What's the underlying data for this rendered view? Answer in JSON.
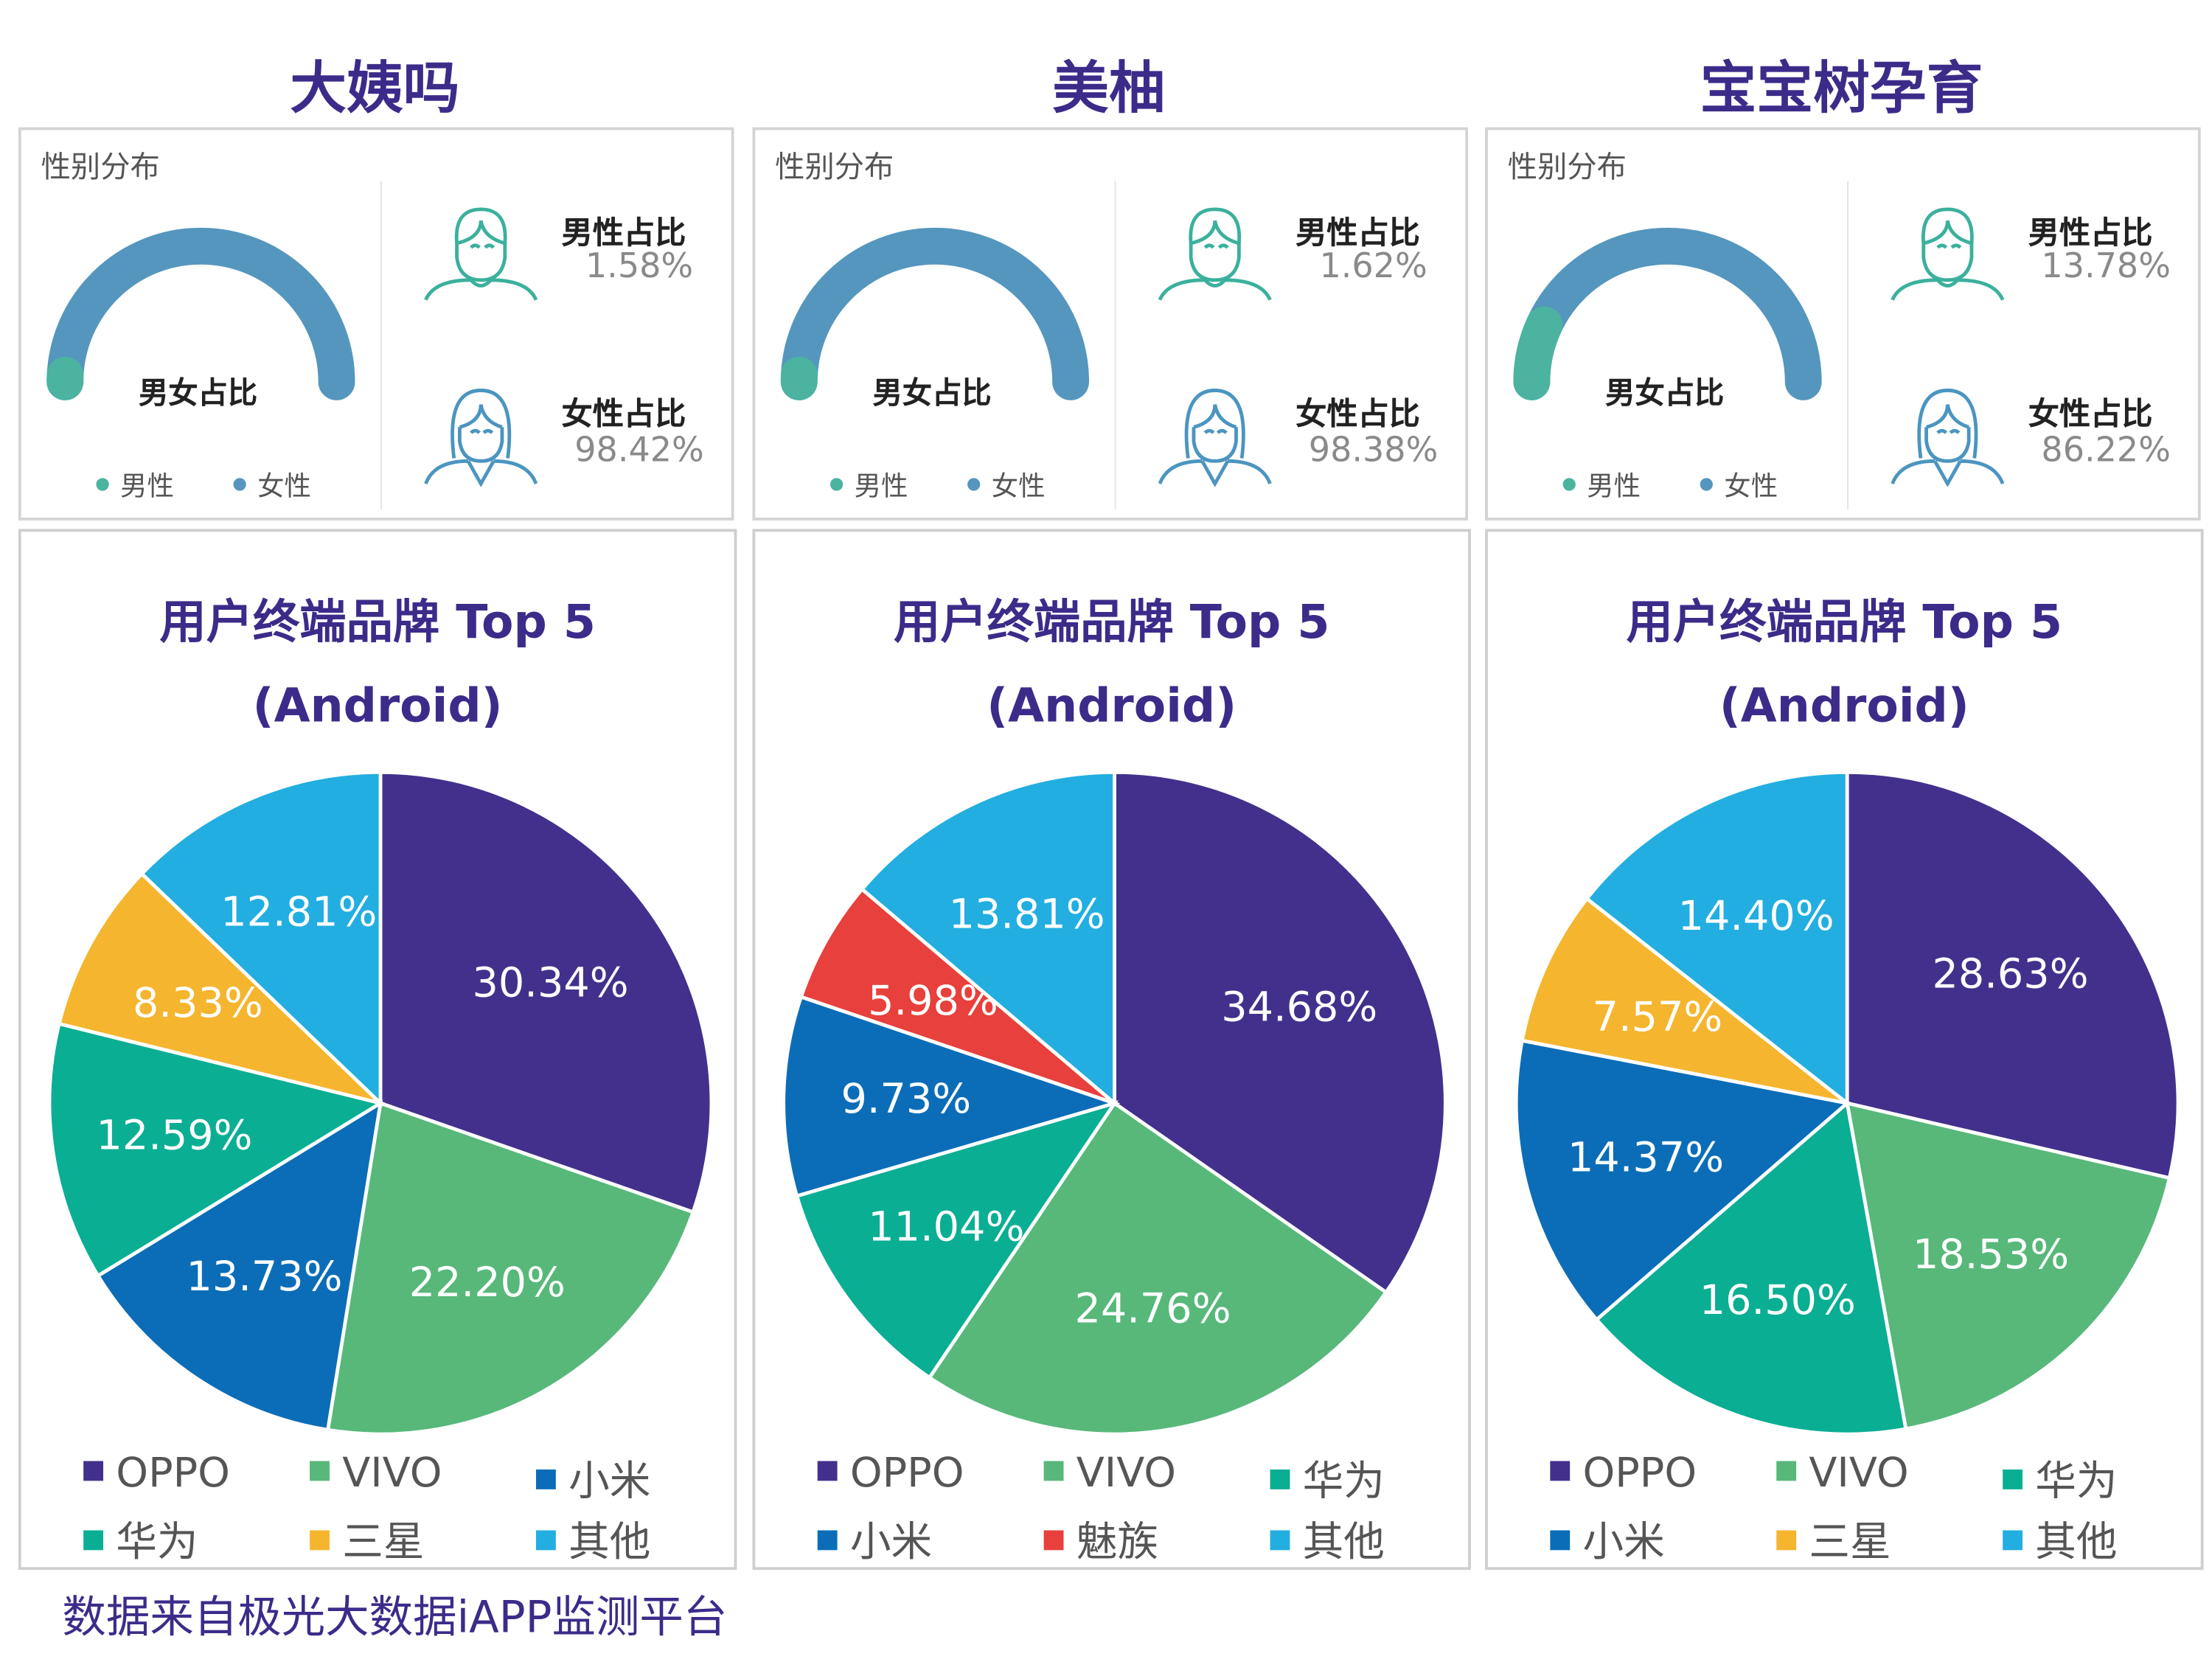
{
  "gender_labels": {
    "section_title": "性别分布",
    "center": "男女占比",
    "legend_male": "男性",
    "legend_female": "女性",
    "male_ratio": "男性占比",
    "female_ratio": "女性占比"
  },
  "colors": {
    "title": "#3d2b8a",
    "gauge_male": "#4bb3a0",
    "gauge_female": "#5596be",
    "OPPO": "#43308c",
    "VIVO": "#57b87a",
    "小米": "#0b6db8",
    "华为": "#0aae93",
    "三星": "#f5b52e",
    "魅族": "#e8403c",
    "其他": "#22aee0"
  },
  "apps": [
    {
      "name": "大姨吗",
      "male": "1.58%",
      "female": "98.42%",
      "male_value": 1.58
    },
    {
      "name": "美柚",
      "male": "1.62%",
      "female": "98.38%",
      "male_value": 1.62
    },
    {
      "name": "宝宝树孕育",
      "male": "13.78%",
      "female": "86.22%",
      "male_value": 13.78
    }
  ],
  "footer": "数据来自极光大数据iAPP监测平台",
  "chart_data": [
    {
      "type": "pie",
      "title": "用户终端品牌 Top 5 (Android)",
      "title_line1": "用户终端品牌 Top 5",
      "title_line2": "(Android)",
      "categories": [
        "OPPO",
        "VIVO",
        "小米",
        "华为",
        "三星",
        "其他"
      ],
      "values": [
        30.34,
        22.2,
        13.73,
        12.59,
        8.33,
        12.81
      ],
      "labels": [
        "30.34%",
        "22.20%",
        "13.73%",
        "12.59%",
        "8.33%",
        "12.81%"
      ],
      "legend": [
        "OPPO",
        "VIVO",
        "小米",
        "华为",
        "三星",
        "其他"
      ],
      "legend_placement": "bottom"
    },
    {
      "type": "pie",
      "title": "用户终端品牌 Top 5 (Android)",
      "title_line1": "用户终端品牌 Top 5",
      "title_line2": "(Android)",
      "categories": [
        "OPPO",
        "VIVO",
        "华为",
        "小米",
        "魅族",
        "其他"
      ],
      "values": [
        34.68,
        24.76,
        11.04,
        9.73,
        5.98,
        13.81
      ],
      "labels": [
        "34.68%",
        "24.76%",
        "11.04%",
        "9.73%",
        "5.98%",
        "13.81%"
      ],
      "legend": [
        "OPPO",
        "VIVO",
        "华为",
        "小米",
        "魅族",
        "其他"
      ],
      "legend_placement": "bottom"
    },
    {
      "type": "pie",
      "title": "用户终端品牌 Top 5 (Android)",
      "title_line1": "用户终端品牌 Top 5",
      "title_line2": "(Android)",
      "categories": [
        "OPPO",
        "VIVO",
        "华为",
        "小米",
        "三星",
        "其他"
      ],
      "values": [
        28.63,
        18.53,
        16.5,
        14.37,
        7.57,
        14.4
      ],
      "labels": [
        "28.63%",
        "18.53%",
        "16.50%",
        "14.37%",
        "7.57%",
        "14.40%"
      ],
      "legend": [
        "OPPO",
        "VIVO",
        "华为",
        "小米",
        "三星",
        "其他"
      ],
      "legend_placement": "bottom"
    }
  ]
}
